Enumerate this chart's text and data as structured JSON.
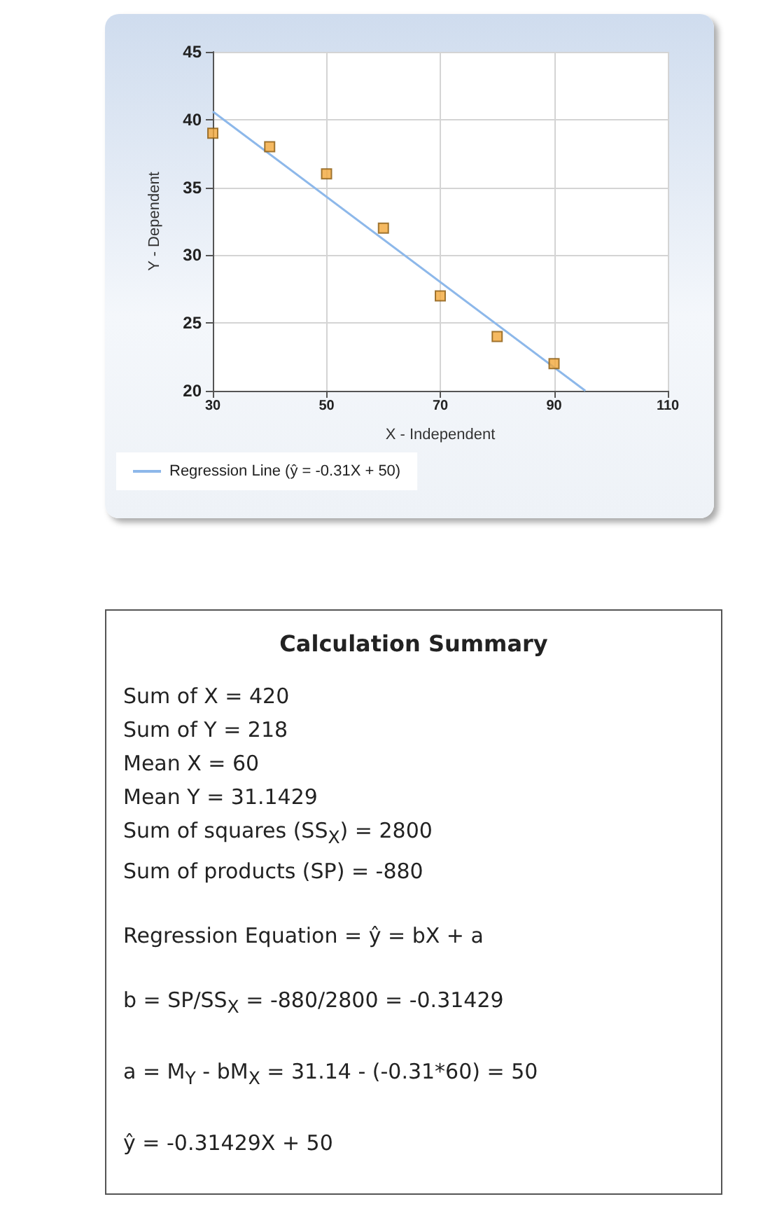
{
  "chart_data": [
    {
      "type": "scatter",
      "xlabel": "X - Independent",
      "ylabel": "Y - Dependent",
      "xlim": [
        30,
        110
      ],
      "xticks": [
        30,
        50,
        70,
        90,
        110
      ],
      "ylim": [
        20,
        45
      ],
      "yticks": [
        20,
        25,
        30,
        35,
        40,
        45
      ],
      "grid": true,
      "legend": "bottom left",
      "series": [
        {
          "type": "scatter",
          "color": "#f2a83a",
          "marker": "square",
          "x": [
            30,
            40,
            50,
            60,
            70,
            80,
            90
          ],
          "values": [
            39,
            38,
            36,
            32,
            27,
            24,
            22
          ]
        },
        {
          "type": "line",
          "name": "Regression Line (ŷ = -0.31X + 50)",
          "color": "#8db8ea",
          "marker": "none",
          "line_style": "solid",
          "x": [
            30,
            95.5
          ],
          "values": [
            40.6,
            20
          ]
        }
      ]
    },
    {
      "type": "other",
      "title": "Calculation Summary",
      "annotations": [
        "Sum of X = 420",
        "Sum of Y = 218",
        "Mean X = 60",
        "Mean Y = 31.1429",
        "Sum of squares (SS$_{X}$) = 2800",
        "Sum of products (SP) = -880",
        "Regression Equation = ŷ = bX + a",
        "b = SP/SS$_{X}$ = -880/2800 = -0.31429",
        "a = M$_{Y}$ - bM$_{X}$ = 31.14 - (-0.31*60) = 50",
        "ŷ = -0.31429X + 50"
      ]
    }
  ]
}
